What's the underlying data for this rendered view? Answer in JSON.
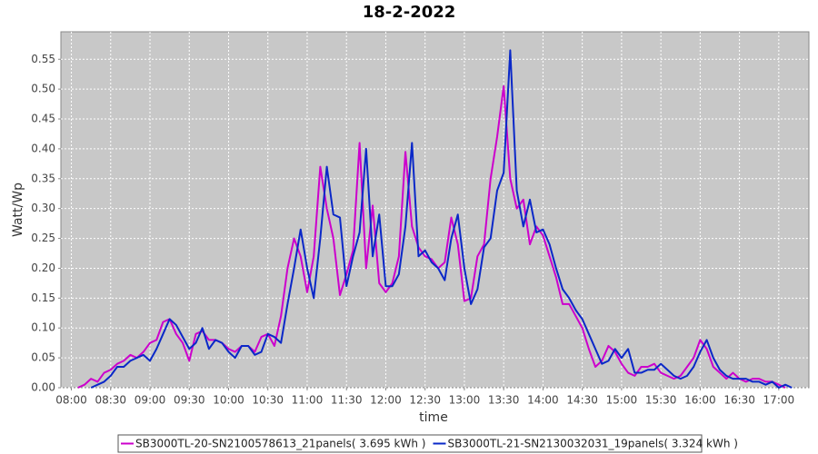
{
  "chart_data": {
    "type": "line",
    "title": "18-2-2022",
    "x_label": "time",
    "y_label": "Watt/Wp",
    "x": [
      "08:05",
      "08:10",
      "08:15",
      "08:20",
      "08:25",
      "08:30",
      "08:35",
      "08:40",
      "08:45",
      "08:50",
      "08:55",
      "09:00",
      "09:05",
      "09:10",
      "09:15",
      "09:20",
      "09:25",
      "09:30",
      "09:35",
      "09:40",
      "09:45",
      "09:50",
      "09:55",
      "10:00",
      "10:05",
      "10:10",
      "10:15",
      "10:20",
      "10:25",
      "10:30",
      "10:35",
      "10:40",
      "10:45",
      "10:50",
      "10:55",
      "11:00",
      "11:05",
      "11:10",
      "11:15",
      "11:20",
      "11:25",
      "11:30",
      "11:35",
      "11:40",
      "11:45",
      "11:50",
      "11:55",
      "12:00",
      "12:05",
      "12:10",
      "12:15",
      "12:20",
      "12:25",
      "12:30",
      "12:35",
      "12:40",
      "12:45",
      "12:50",
      "12:55",
      "13:00",
      "13:05",
      "13:10",
      "13:15",
      "13:20",
      "13:25",
      "13:30",
      "13:35",
      "13:40",
      "13:45",
      "13:50",
      "13:55",
      "14:00",
      "14:05",
      "14:10",
      "14:15",
      "14:20",
      "14:25",
      "14:30",
      "14:35",
      "14:40",
      "14:45",
      "14:50",
      "14:55",
      "15:00",
      "15:05",
      "15:10",
      "15:15",
      "15:20",
      "15:25",
      "15:30",
      "15:35",
      "15:40",
      "15:45",
      "15:50",
      "15:55",
      "16:00",
      "16:05",
      "16:10",
      "16:15",
      "16:20",
      "16:25",
      "16:30",
      "16:35",
      "16:40",
      "16:45",
      "16:50",
      "16:55",
      "17:00",
      "17:05",
      "17:10"
    ],
    "series": [
      {
        "name": "SB3000TL-20-SN2100578613_21panels( 3.695 kWh )",
        "color": "#cc00cc",
        "values": [
          0,
          0.005,
          0.015,
          0.01,
          0.025,
          0.03,
          0.04,
          0.045,
          0.055,
          0.05,
          0.06,
          0.075,
          0.08,
          0.11,
          0.115,
          0.09,
          0.075,
          0.045,
          0.09,
          0.095,
          0.08,
          0.08,
          0.075,
          0.065,
          0.06,
          0.07,
          0.07,
          0.06,
          0.085,
          0.09,
          0.07,
          0.12,
          0.2,
          0.25,
          0.22,
          0.16,
          0.22,
          0.37,
          0.3,
          0.25,
          0.155,
          0.19,
          0.23,
          0.41,
          0.2,
          0.305,
          0.175,
          0.16,
          0.175,
          0.22,
          0.395,
          0.27,
          0.235,
          0.22,
          0.215,
          0.2,
          0.21,
          0.285,
          0.24,
          0.145,
          0.15,
          0.22,
          0.24,
          0.35,
          0.42,
          0.505,
          0.35,
          0.3,
          0.315,
          0.24,
          0.27,
          0.255,
          0.22,
          0.185,
          0.14,
          0.14,
          0.12,
          0.1,
          0.065,
          0.035,
          0.045,
          0.07,
          0.06,
          0.04,
          0.025,
          0.02,
          0.035,
          0.035,
          0.04,
          0.025,
          0.02,
          0.015,
          0.02,
          0.035,
          0.05,
          0.08,
          0.065,
          0.035,
          0.025,
          0.015,
          0.025,
          0.015,
          0.01,
          0.015,
          0.015,
          0.01,
          0.01,
          0.005,
          0,
          null
        ]
      },
      {
        "name": "SB3000TL-21-SN2130032031_19panels( 3.324 kWh )",
        "color": "#0a28c8",
        "values": [
          null,
          null,
          0,
          0.005,
          0.01,
          0.02,
          0.035,
          0.035,
          0.045,
          0.05,
          0.055,
          0.045,
          0.065,
          0.09,
          0.115,
          0.105,
          0.085,
          0.065,
          0.075,
          0.1,
          0.065,
          0.08,
          0.075,
          0.06,
          0.05,
          0.07,
          0.07,
          0.055,
          0.06,
          0.09,
          0.085,
          0.075,
          0.14,
          0.2,
          0.265,
          0.2,
          0.15,
          0.25,
          0.37,
          0.29,
          0.285,
          0.17,
          0.22,
          0.26,
          0.4,
          0.22,
          0.29,
          0.17,
          0.17,
          0.19,
          0.27,
          0.41,
          0.22,
          0.23,
          0.21,
          0.2,
          0.18,
          0.25,
          0.29,
          0.2,
          0.14,
          0.165,
          0.235,
          0.25,
          0.33,
          0.36,
          0.565,
          0.33,
          0.27,
          0.315,
          0.26,
          0.265,
          0.24,
          0.2,
          0.165,
          0.15,
          0.13,
          0.115,
          0.09,
          0.065,
          0.04,
          0.045,
          0.065,
          0.05,
          0.065,
          0.025,
          0.025,
          0.03,
          0.03,
          0.04,
          0.03,
          0.02,
          0.015,
          0.02,
          0.035,
          0.06,
          0.08,
          0.05,
          0.03,
          0.02,
          0.015,
          0.015,
          0.015,
          0.01,
          0.01,
          0.005,
          0.01,
          0,
          0.005,
          0
        ]
      }
    ],
    "xlim": [
      "07:52",
      "17:23"
    ],
    "xticks": [
      "08:00",
      "08:30",
      "09:00",
      "09:30",
      "10:00",
      "10:30",
      "11:00",
      "11:30",
      "12:00",
      "12:30",
      "13:00",
      "13:30",
      "14:00",
      "14:30",
      "15:00",
      "15:30",
      "16:00",
      "16:30",
      "17:00"
    ],
    "ylim": [
      0,
      0.596
    ],
    "yticks": [
      {
        "value": 0,
        "label": "0.00"
      },
      0.05,
      {
        "value": 0.1,
        "label": "0.10"
      },
      0.15,
      {
        "value": 0.2,
        "label": "0.20"
      },
      0.25,
      {
        "value": 0.3,
        "label": "0.30"
      },
      0.35,
      {
        "value": 0.4,
        "label": "0.40"
      },
      0.45,
      {
        "value": 0.5,
        "label": "0.50"
      },
      0.55
    ],
    "grid": true,
    "legend": "bottom"
  }
}
